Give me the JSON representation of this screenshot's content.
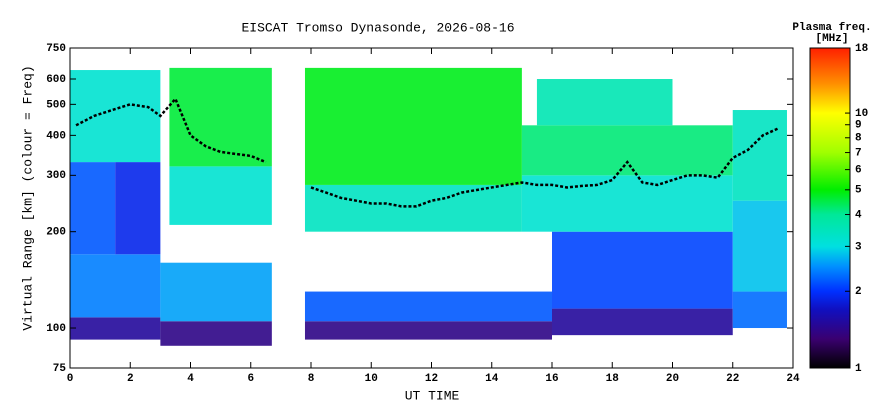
{
  "chart_data": {
    "type": "heatmap",
    "title": "EISCAT Tromso Dynasonde, 2026-08-16",
    "xlabel": "UT TIME",
    "ylabel": "Virtual Range [km] (colour = Freq)",
    "colorbar_title": [
      "Plasma freq.",
      "[MHz]"
    ],
    "xlim": [
      0,
      24
    ],
    "xticks": [
      0,
      2,
      4,
      6,
      8,
      10,
      12,
      14,
      16,
      18,
      20,
      22,
      24
    ],
    "ylim": [
      75,
      750
    ],
    "yticks": [
      75,
      100,
      200,
      300,
      400,
      500,
      600,
      750
    ],
    "ylog": true,
    "zlim": [
      1,
      18
    ],
    "zticks": [
      1,
      2,
      3,
      4,
      5,
      6,
      7,
      8,
      9,
      10,
      18
    ],
    "zlog": true,
    "colorscale": [
      [
        1,
        "#000000"
      ],
      [
        1.3,
        "#3a0070"
      ],
      [
        1.7,
        "#1010c0"
      ],
      [
        2,
        "#0030ff"
      ],
      [
        2.5,
        "#0090ff"
      ],
      [
        3,
        "#00e0e0"
      ],
      [
        4,
        "#00e898"
      ],
      [
        5,
        "#00ee00"
      ],
      [
        7,
        "#a0ff00"
      ],
      [
        10,
        "#ffff00"
      ],
      [
        13,
        "#ff9000"
      ],
      [
        18,
        "#ff2000"
      ]
    ],
    "cells": [
      {
        "x": [
          0,
          3
        ],
        "y": [
          92,
          108
        ],
        "z": 1.5
      },
      {
        "x": [
          0,
          3
        ],
        "y": [
          108,
          170
        ],
        "z": 2.4
      },
      {
        "x": [
          0,
          1.5
        ],
        "y": [
          170,
          330
        ],
        "z": 2.2
      },
      {
        "x": [
          1.5,
          3
        ],
        "y": [
          170,
          330
        ],
        "z": 1.9
      },
      {
        "x": [
          0,
          3
        ],
        "y": [
          330,
          640
        ],
        "z": 3.2
      },
      {
        "x": [
          3,
          6.7
        ],
        "y": [
          88,
          105
        ],
        "z": 1.4
      },
      {
        "x": [
          3,
          6.7
        ],
        "y": [
          105,
          160
        ],
        "z": 2.6
      },
      {
        "x": [
          3.3,
          6.7
        ],
        "y": [
          210,
          320
        ],
        "z": 3.2
      },
      {
        "x": [
          3.3,
          6.7
        ],
        "y": [
          320,
          650
        ],
        "z": 4.6
      },
      {
        "x": [
          7.8,
          16
        ],
        "y": [
          92,
          105
        ],
        "z": 1.4
      },
      {
        "x": [
          7.8,
          16
        ],
        "y": [
          105,
          130
        ],
        "z": 2.2
      },
      {
        "x": [
          7.8,
          15
        ],
        "y": [
          200,
          280
        ],
        "z": 3.4
      },
      {
        "x": [
          7.8,
          15
        ],
        "y": [
          280,
          650
        ],
        "z": 4.8
      },
      {
        "x": [
          16,
          22
        ],
        "y": [
          95,
          115
        ],
        "z": 1.5
      },
      {
        "x": [
          16,
          22
        ],
        "y": [
          115,
          200
        ],
        "z": 2.1
      },
      {
        "x": [
          15,
          22
        ],
        "y": [
          200,
          300
        ],
        "z": 3.2
      },
      {
        "x": [
          15,
          22
        ],
        "y": [
          300,
          430
        ],
        "z": 4.2
      },
      {
        "x": [
          15.5,
          20
        ],
        "y": [
          430,
          600
        ],
        "z": 3.6
      },
      {
        "x": [
          22,
          23.8
        ],
        "y": [
          100,
          130
        ],
        "z": 2.3
      },
      {
        "x": [
          22,
          23.8
        ],
        "y": [
          130,
          250
        ],
        "z": 2.8
      },
      {
        "x": [
          22,
          23.8
        ],
        "y": [
          250,
          480
        ],
        "z": 3.4
      }
    ],
    "trace": {
      "color": "#000000",
      "x": [
        0.2,
        0.8,
        1.4,
        2,
        2.6,
        3,
        3.5,
        4,
        4.5,
        5,
        5.5,
        6,
        6.5,
        7,
        8,
        8.5,
        9,
        9.5,
        10,
        10.5,
        11,
        11.5,
        12,
        12.5,
        13,
        13.5,
        14,
        14.5,
        15,
        15.5,
        16,
        16.5,
        17,
        17.5,
        18,
        18.5,
        19,
        19.5,
        20,
        20.5,
        21,
        21.5,
        22,
        22.5,
        23,
        23.5
      ],
      "y": [
        430,
        460,
        480,
        500,
        490,
        460,
        520,
        400,
        370,
        355,
        350,
        345,
        330,
        null,
        275,
        265,
        255,
        250,
        245,
        245,
        240,
        240,
        250,
        255,
        265,
        270,
        275,
        280,
        285,
        280,
        280,
        275,
        278,
        280,
        290,
        330,
        285,
        280,
        290,
        300,
        300,
        295,
        340,
        360,
        400,
        420
      ]
    }
  }
}
